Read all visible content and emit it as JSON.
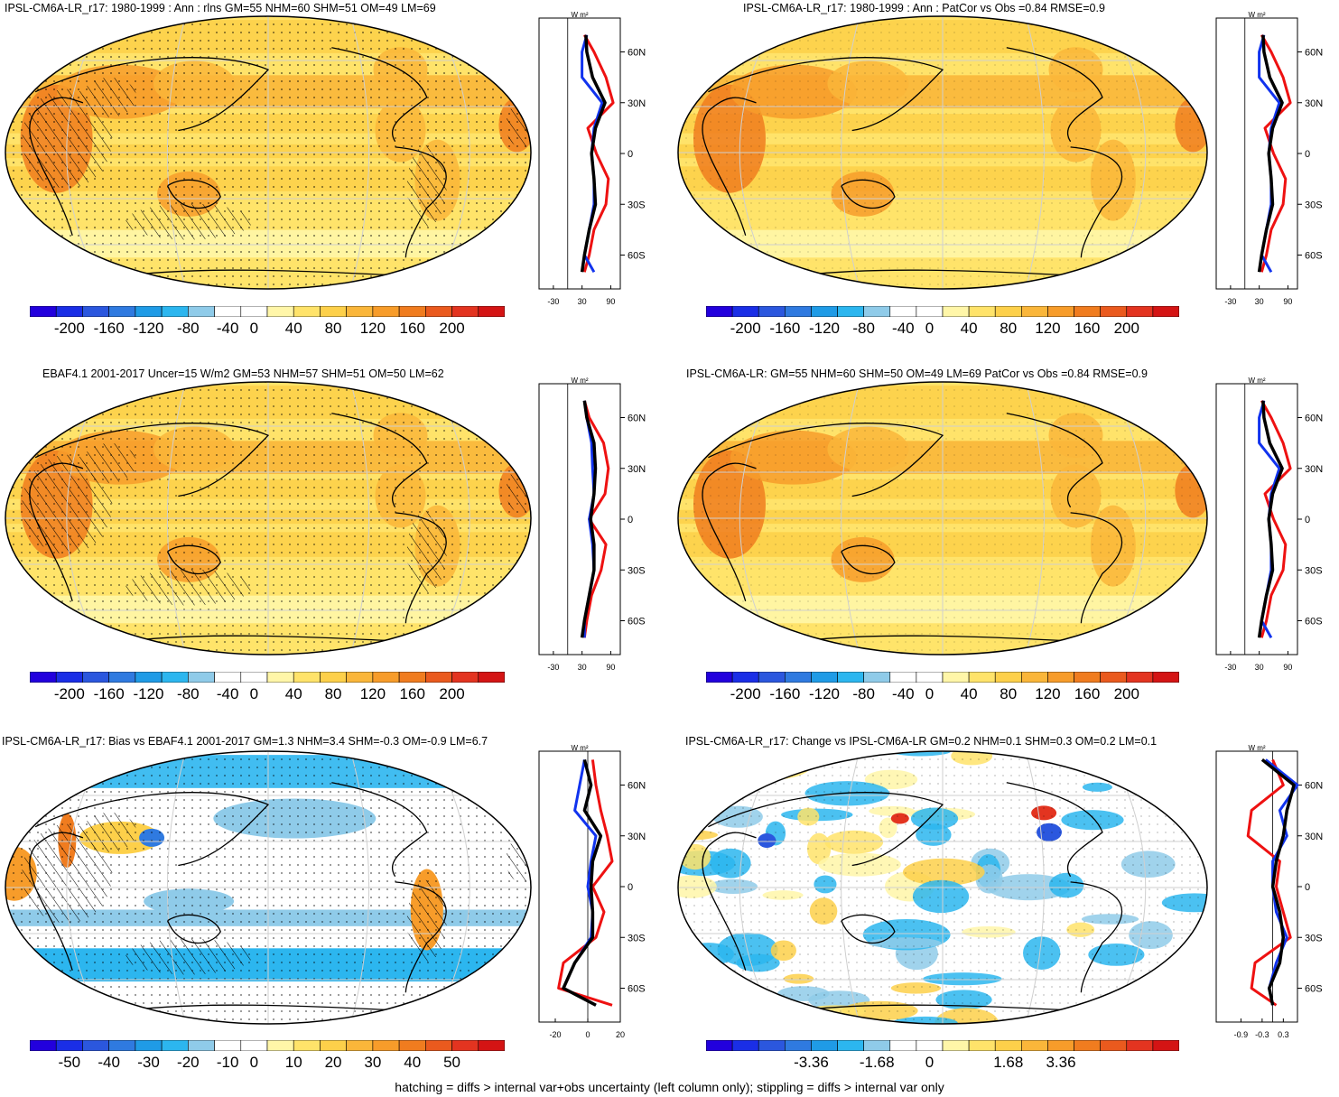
{
  "footer": "hatching = diffs > internal var+obs uncertainty (left column only); stippling = diffs > internal var only",
  "zonal_unit": "W m²",
  "palette": [
    "#2200dd",
    "#1a2ee6",
    "#2b57de",
    "#2f7ae0",
    "#1f9be6",
    "#2cb6ef",
    "#8fcbe9",
    "#ffffff",
    "#ffffff",
    "#fff6a8",
    "#ffe36a",
    "#fdd04a",
    "#fab63a",
    "#f79c2a",
    "#f07c1f",
    "#ea5a1e",
    "#e33420",
    "#d41414"
  ],
  "panels": [
    {
      "id": "p1",
      "title": "IPSL-CM6A-LR_r17: 1980-1999 : Ann : rlns GM=55 NHM=60 SHM=51 OM=49 LM=69",
      "colorbar": [
        "-200",
        "-160",
        "-120",
        "-80",
        "-40",
        "0",
        "40",
        "80",
        "120",
        "160",
        "200"
      ],
      "zonal_ticks_x": [
        "-30",
        "30",
        "90"
      ],
      "zonal_ticks_y": [
        "60N",
        "30N",
        "0",
        "30S",
        "60S"
      ]
    },
    {
      "id": "p2",
      "title": "IPSL-CM6A-LR_r17: 1980-1999 : Ann : PatCor vs Obs =0.84 RMSE=0.9",
      "colorbar": [
        "-200",
        "-160",
        "-120",
        "-80",
        "-40",
        "0",
        "40",
        "80",
        "120",
        "160",
        "200"
      ],
      "zonal_ticks_x": [
        "-30",
        "30",
        "90"
      ],
      "zonal_ticks_y": [
        "60N",
        "30N",
        "0",
        "30S",
        "60S"
      ]
    },
    {
      "id": "p3",
      "title": "EBAF4.1 2001-2017 Uncer=15 W/m2 GM=53 NHM=57 SHM=51 OM=50 LM=62",
      "colorbar": [
        "-200",
        "-160",
        "-120",
        "-80",
        "-40",
        "0",
        "40",
        "80",
        "120",
        "160",
        "200"
      ],
      "zonal_ticks_x": [
        "-30",
        "30",
        "90"
      ],
      "zonal_ticks_y": [
        "60N",
        "30N",
        "0",
        "30S",
        "60S"
      ]
    },
    {
      "id": "p4",
      "title": "IPSL-CM6A-LR: GM=55 NHM=60 SHM=50 OM=49 LM=69 PatCor vs Obs =0.84 RMSE=0.9",
      "colorbar": [
        "-200",
        "-160",
        "-120",
        "-80",
        "-40",
        "0",
        "40",
        "80",
        "120",
        "160",
        "200"
      ],
      "zonal_ticks_x": [
        "-30",
        "30",
        "90"
      ],
      "zonal_ticks_y": [
        "60N",
        "30N",
        "0",
        "30S",
        "60S"
      ]
    },
    {
      "id": "p5",
      "title": "IPSL-CM6A-LR_r17: Bias vs EBAF4.1 2001-2017 GM=1.3 NHM=3.4 SHM=-0.3 OM=-0.9 LM=6.7",
      "colorbar": [
        "-50",
        "-40",
        "-30",
        "-20",
        "-10",
        "0",
        "10",
        "20",
        "30",
        "40",
        "50"
      ],
      "zonal_ticks_x": [
        "-20",
        "0",
        "20"
      ],
      "zonal_ticks_y": [
        "60N",
        "30N",
        "0",
        "30S",
        "60S"
      ]
    },
    {
      "id": "p6",
      "title": "IPSL-CM6A-LR_r17: Change vs IPSL-CM6A-LR GM=0.2 NHM=0.1 SHM=0.3 OM=0.2 LM=0.1",
      "colorbar": [
        "-3.36",
        "-1.68",
        "0",
        "1.68",
        "3.36"
      ],
      "zonal_ticks_x": [
        "-0.9",
        "-0.3",
        "0.3"
      ],
      "zonal_ticks_y": [
        "60N",
        "30N",
        "0",
        "30S",
        "60S"
      ]
    }
  ],
  "chart_data": [
    {
      "type": "heatmap",
      "title": "IPSL-CM6A-LR_r17: 1980-1999 : Ann : rlns GM=55 NHM=60 SHM=51 OM=49 LM=69",
      "colorbar_range": [
        -200,
        200
      ],
      "zonal_profile": {
        "lat": [
          70,
          60,
          45,
          30,
          15,
          0,
          -15,
          -30,
          -45,
          -60,
          -70
        ],
        "black": [
          38,
          40,
          52,
          78,
          58,
          50,
          55,
          58,
          45,
          35,
          30
        ],
        "blue": [
          40,
          30,
          30,
          72,
          55,
          50,
          55,
          55,
          45,
          35,
          55
        ],
        "red": [
          35,
          55,
          80,
          95,
          42,
          60,
          85,
          80,
          55,
          45,
          35
        ]
      }
    },
    {
      "type": "heatmap",
      "title": "IPSL-CM6A-LR_r17: 1980-1999 : Ann : PatCor vs Obs =0.84 RMSE=0.9",
      "colorbar_range": [
        -200,
        200
      ],
      "zonal_profile": {
        "lat": [
          70,
          60,
          45,
          30,
          15,
          0,
          -15,
          -30,
          -45,
          -60,
          -70
        ],
        "black": [
          38,
          40,
          52,
          78,
          58,
          50,
          55,
          58,
          45,
          35,
          30
        ],
        "blue": [
          40,
          30,
          30,
          72,
          55,
          50,
          55,
          55,
          45,
          35,
          55
        ],
        "red": [
          35,
          55,
          80,
          95,
          42,
          60,
          85,
          80,
          55,
          45,
          35
        ]
      }
    },
    {
      "type": "heatmap",
      "title": "EBAF4.1 2001-2017 Uncer=15 W/m2 GM=53 NHM=57 SHM=51 OM=50 LM=62",
      "colorbar_range": [
        -200,
        200
      ],
      "zonal_profile": {
        "lat": [
          70,
          60,
          45,
          30,
          15,
          0,
          -15,
          -30,
          -45,
          -60,
          -70
        ],
        "black": [
          35,
          40,
          55,
          58,
          55,
          48,
          55,
          55,
          45,
          35,
          30
        ],
        "blue": [
          35,
          40,
          50,
          52,
          55,
          45,
          52,
          55,
          45,
          35,
          35
        ],
        "red": [
          35,
          45,
          75,
          85,
          78,
          45,
          80,
          70,
          50,
          40,
          35
        ]
      }
    },
    {
      "type": "heatmap",
      "title": "IPSL-CM6A-LR: GM=55 NHM=60 SHM=50 OM=49 LM=69 PatCor vs Obs =0.84 RMSE=0.9",
      "colorbar_range": [
        -200,
        200
      ],
      "zonal_profile": {
        "lat": [
          70,
          60,
          45,
          30,
          15,
          0,
          -15,
          -30,
          -45,
          -60,
          -70
        ],
        "black": [
          38,
          40,
          52,
          78,
          58,
          50,
          55,
          58,
          45,
          35,
          30
        ],
        "blue": [
          40,
          30,
          30,
          72,
          55,
          50,
          55,
          55,
          45,
          35,
          55
        ],
        "red": [
          35,
          55,
          80,
          95,
          42,
          60,
          85,
          80,
          55,
          45,
          35
        ]
      }
    },
    {
      "type": "heatmap",
      "title": "IPSL-CM6A-LR_r17: Bias vs EBAF4.1 2001-2017 GM=1.3 NHM=3.4 SHM=-0.3 OM=-0.9 LM=6.7",
      "colorbar_range": [
        -50,
        50
      ],
      "zonal_profile": {
        "lat": [
          75,
          60,
          45,
          30,
          15,
          0,
          -15,
          -30,
          -45,
          -60,
          -70
        ],
        "black": [
          -2,
          2,
          -2,
          8,
          3,
          2,
          3,
          3,
          -8,
          -15,
          5
        ],
        "blue": [
          -2,
          -5,
          -8,
          5,
          2,
          0,
          3,
          2,
          -8,
          -15,
          5
        ],
        "red": [
          3,
          5,
          8,
          12,
          15,
          3,
          10,
          5,
          -15,
          -18,
          15
        ]
      }
    },
    {
      "type": "heatmap",
      "title": "IPSL-CM6A-LR_r17: Change vs IPSL-CM6A-LR GM=0.2 NHM=0.1 SHM=0.3 OM=0.2 LM=0.1",
      "colorbar_range": [
        -4.2,
        4.2
      ],
      "zonal_profile": {
        "lat": [
          75,
          60,
          45,
          30,
          15,
          0,
          -15,
          -30,
          -45,
          -60,
          -70
        ],
        "black": [
          -0.3,
          0.6,
          0.4,
          0.3,
          0.1,
          0.0,
          0.2,
          0.3,
          0.2,
          -0.1,
          0.0
        ],
        "blue": [
          -0.2,
          0.7,
          0.2,
          0.4,
          0.0,
          0.0,
          0.1,
          0.4,
          0.1,
          -0.1,
          0.0
        ],
        "red": [
          0.0,
          0.3,
          -0.6,
          -0.7,
          0.2,
          0.1,
          0.3,
          0.5,
          -0.5,
          -0.6,
          0.1
        ]
      }
    }
  ]
}
